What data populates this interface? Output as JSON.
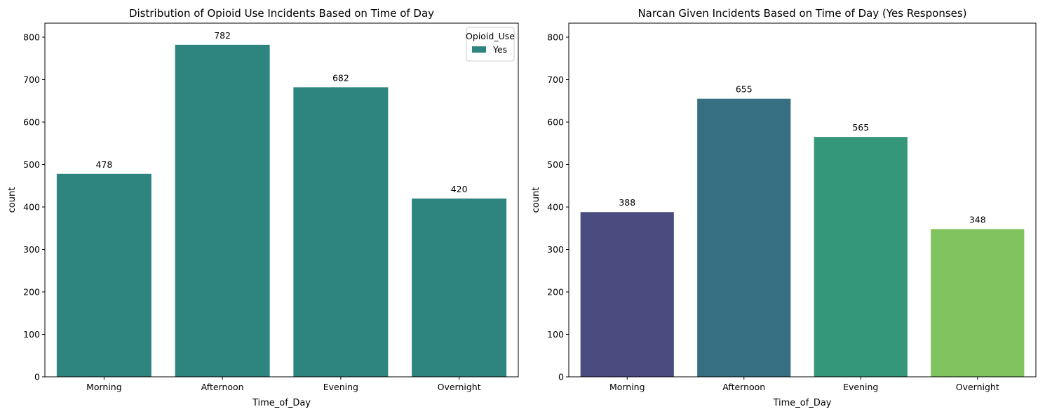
{
  "chart_data": [
    {
      "type": "bar",
      "title": "Distribution of Opioid Use Incidents Based on Time of Day",
      "xlabel": "Time_of_Day",
      "ylabel": "count",
      "categories": [
        "Morning",
        "Afternoon",
        "Evening",
        "Overnight"
      ],
      "series": [
        {
          "name": "Yes",
          "values": [
            478,
            782,
            682,
            420
          ],
          "color": "#2e8580"
        }
      ],
      "ylim": [
        0,
        833
      ],
      "yticks": [
        0,
        100,
        200,
        300,
        400,
        500,
        600,
        700,
        800
      ],
      "data_labels": [
        "478",
        "782",
        "682",
        "420"
      ],
      "legend": {
        "title": "Opioid_Use",
        "entries": [
          "Yes"
        ],
        "placement": "top-right"
      },
      "grid": false
    },
    {
      "type": "bar",
      "title": "Narcan Given Incidents Based on Time of Day (Yes Responses)",
      "xlabel": "Time_of_Day",
      "ylabel": "count",
      "categories": [
        "Morning",
        "Afternoon",
        "Evening",
        "Overnight"
      ],
      "values": [
        388,
        655,
        565,
        348
      ],
      "colors": [
        "#4a4c80",
        "#366f81",
        "#34977a",
        "#80c35f"
      ],
      "ylim": [
        0,
        833
      ],
      "yticks": [
        0,
        100,
        200,
        300,
        400,
        500,
        600,
        700,
        800
      ],
      "data_labels": [
        "388",
        "655",
        "565",
        "348"
      ],
      "grid": false
    }
  ]
}
